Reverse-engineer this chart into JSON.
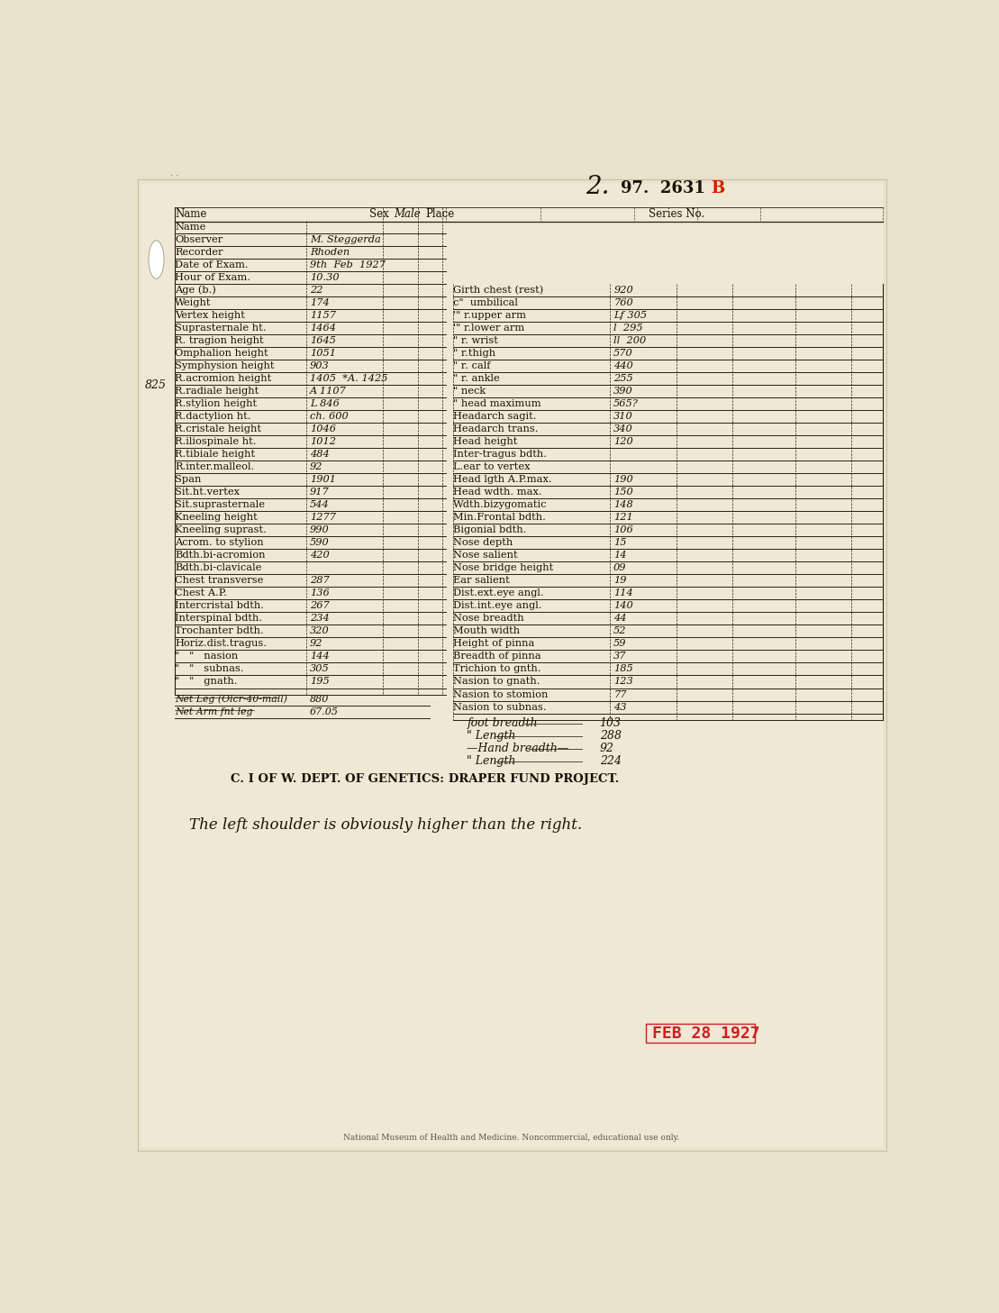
{
  "bg_color": "#e8e2cc",
  "paper_color": "#eee8d4",
  "left_column": [
    [
      "Name",
      ""
    ],
    [
      "Observer",
      "M. Steggerda"
    ],
    [
      "Recorder",
      "Rhoden"
    ],
    [
      "Date of Exam.",
      "9th  Feb  1927"
    ],
    [
      "Hour of Exam.",
      "10.30"
    ],
    [
      "Age (b.)",
      "22"
    ],
    [
      "Weight",
      "174"
    ],
    [
      "Vertex height",
      "1157"
    ],
    [
      "Suprasternale ht.",
      "1464"
    ],
    [
      "R. tragion height",
      "1645"
    ],
    [
      "Omphalion height",
      "1051"
    ],
    [
      "Symphysion height",
      "903"
    ],
    [
      "R.acromion height",
      "1405  *A. 1425"
    ],
    [
      "R.radiale height",
      "A 1107"
    ],
    [
      "R.stylion height",
      "L 846"
    ],
    [
      "R.dactylion ht.",
      "ch. 600"
    ],
    [
      "R.cristale height",
      "1046"
    ],
    [
      "R.iliospinale ht.",
      "1012"
    ],
    [
      "R.tibiale height",
      "484"
    ],
    [
      "R.inter.malleol.",
      "92"
    ],
    [
      "Span",
      "1901"
    ],
    [
      "Sit.ht.vertex",
      "917"
    ],
    [
      "Sit.suprasternale",
      "544"
    ],
    [
      "Kneeling height",
      "1277"
    ],
    [
      "Kneeling suprast.",
      "990"
    ],
    [
      "Acrom. to stylion",
      "590"
    ],
    [
      "Bdth.bi-acromion",
      "420"
    ],
    [
      "Bdth.bi-clavicale",
      ""
    ],
    [
      "Chest transverse",
      "287"
    ],
    [
      "Chest A.P.",
      "136"
    ],
    [
      "Intercristal bdth.",
      "267"
    ],
    [
      "Interspinal bdth.",
      "234"
    ],
    [
      "Trochanter bdth.",
      "320"
    ],
    [
      "Horiz.dist.tragus.",
      "92"
    ],
    [
      "\"   \"   nasion",
      "144"
    ],
    [
      "\"   \"   subnas.",
      "305"
    ],
    [
      "\"   \"   gnath.",
      "195"
    ]
  ],
  "left_extras": [
    [
      "Net Leg (Olcr-40-mall)",
      "880"
    ],
    [
      "Net Arm fnt leg",
      "67.05"
    ]
  ],
  "right_column": [
    [
      "Girth chest (rest)",
      "920"
    ],
    [
      "c\"  umbilical",
      "760"
    ],
    [
      "'\" r.upper arm",
      "Lf 305"
    ],
    [
      "'\" r.lower arm",
      "l  295"
    ],
    [
      "\" r. wrist",
      "ll  200"
    ],
    [
      "\" r.thigh",
      "570"
    ],
    [
      "\" r. calf",
      "440"
    ],
    [
      "\" r. ankle",
      "255"
    ],
    [
      "\" neck",
      "390"
    ],
    [
      "\" head maximum",
      "565?"
    ],
    [
      "Headarch sagit.",
      "310"
    ],
    [
      "Headarch trans.",
      "340"
    ],
    [
      "Head height",
      "120"
    ],
    [
      "Inter-tragus bdth.",
      ""
    ],
    [
      "L.ear to vertex",
      ""
    ],
    [
      "Head lgth A.P.max.",
      "190"
    ],
    [
      "Head wdth. max.",
      "150"
    ],
    [
      "Wdth.bizygomatic",
      "148"
    ],
    [
      "Min.Frontal bdth.",
      "121"
    ],
    [
      "Bigonial bdth.",
      "106"
    ],
    [
      "Nose depth",
      "15"
    ],
    [
      "Nose salient",
      "14"
    ],
    [
      "Nose bridge height",
      "09"
    ],
    [
      "Ear salient",
      "19"
    ],
    [
      "Dist.ext.eye angl.",
      "114"
    ],
    [
      "Dist.int.eye angl.",
      "140"
    ],
    [
      "Nose breadth",
      "44"
    ],
    [
      "Mouth width",
      "52"
    ],
    [
      "Height of pinna",
      "59"
    ],
    [
      "Breadth of pinna",
      "37"
    ],
    [
      "Trichion to gnth.",
      "185"
    ],
    [
      "Nasion to gnath.",
      "123"
    ],
    [
      "Nasion to stomion",
      "77"
    ],
    [
      "Nasion to subnas.",
      "43"
    ]
  ],
  "bottom_measurements": [
    [
      "foot breadth",
      "103"
    ],
    [
      "\" Length",
      "288"
    ],
    [
      "-Hand breadth-",
      "92"
    ],
    [
      "\" Length",
      "224"
    ]
  ],
  "institution_line": "C. I OF W. DEPT. OF GENETICS: DRAPER FUND PROJECT.",
  "note_line": "The left shoulder is obviously higher than the right.",
  "date_stamp": "FEB 28 1927",
  "left_margin_note": "825",
  "top_script": "2.",
  "top_number": "97.  2631",
  "top_letter": "B"
}
